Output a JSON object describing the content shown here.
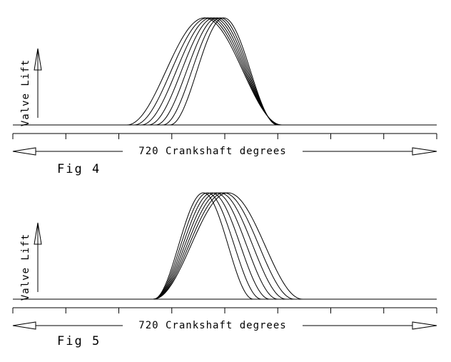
{
  "figures": [
    {
      "y_axis_label": "Valve Lift",
      "x_axis_label": "720 Crankshaft degrees",
      "label": "Fig 4"
    },
    {
      "y_axis_label": "Valve Lift",
      "x_axis_label": "720 Crankshaft degrees",
      "label": "Fig 5"
    }
  ]
}
